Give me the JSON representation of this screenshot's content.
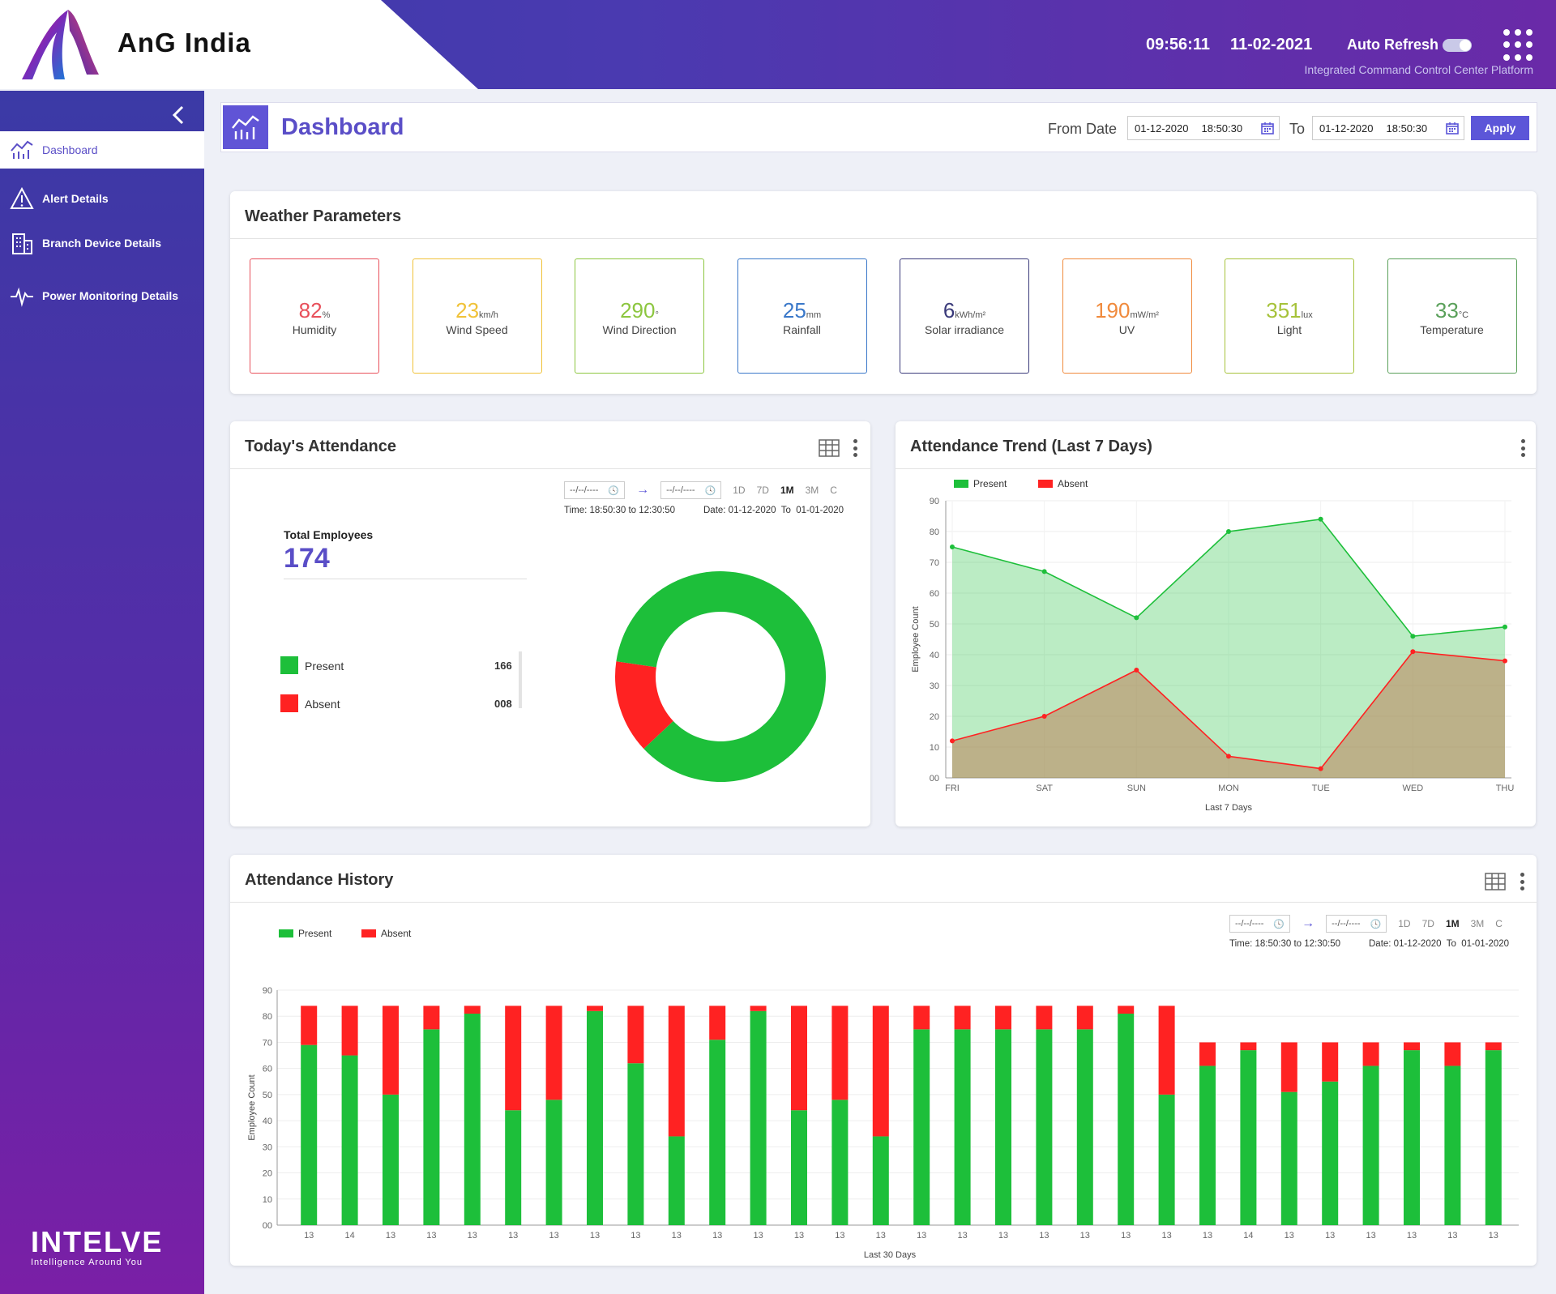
{
  "header": {
    "brand": "AnG India",
    "time": "09:56:11",
    "date": "11-02-2021",
    "auto_refresh_label": "Auto Refresh",
    "auto_refresh_on": true,
    "subtitle": "Integrated Command Control Center Platform"
  },
  "sidebar": {
    "items": [
      {
        "label": "Dashboard",
        "icon": "chart-icon",
        "active": true
      },
      {
        "label": "Alert Details",
        "icon": "warning-icon"
      },
      {
        "label": "Branch Device Details",
        "icon": "building-icon"
      },
      {
        "label": "Power Monitoring Details",
        "icon": "pulse-icon"
      }
    ],
    "footer_brand": "INTELVE",
    "footer_tagline": "Intelligence Around You"
  },
  "page": {
    "title": "Dashboard",
    "from_label": "From Date",
    "from_date": "01-12-2020",
    "from_time": "18:50:30",
    "to_label": "To",
    "to_date": "01-12-2020",
    "to_time": "18:50:30",
    "apply_label": "Apply"
  },
  "weather": {
    "title": "Weather Parameters",
    "tiles": [
      {
        "value": "82",
        "unit": "%",
        "name": "Humidity",
        "color": "#e8505b"
      },
      {
        "value": "23",
        "unit": "km/h",
        "name": "Wind Speed",
        "color": "#f0c239"
      },
      {
        "value": "290",
        "unit": "°",
        "name": "Wind Direction",
        "color": "#8cc63f"
      },
      {
        "value": "25",
        "unit": "mm",
        "name": "Rainfall",
        "color": "#3a78c9"
      },
      {
        "value": "6",
        "unit": "kWh/m²",
        "name": "Solar irradiance",
        "color": "#3a3a7a"
      },
      {
        "value": "190",
        "unit": "mW/m²",
        "name": "UV",
        "color": "#f08a3c"
      },
      {
        "value": "351",
        "unit": "lux",
        "name": "Light",
        "color": "#a6c23a"
      },
      {
        "value": "33",
        "unit": "°C",
        "name": "Temperature",
        "color": "#5aa05a"
      }
    ]
  },
  "range": {
    "from_placeholder": "--/--/----",
    "to_placeholder": "--/--/----",
    "buttons": [
      "1D",
      "7D",
      "1M",
      "3M",
      "C"
    ],
    "selected": "1M",
    "time_info": "Time: 18:50:30 to 12:30:50",
    "date_info": "Date: 01-12-2020  To  01-01-2020"
  },
  "today_attendance": {
    "title": "Today's Attendance",
    "total_label": "Total Employees",
    "total_value": "174",
    "items": [
      {
        "label": "Present",
        "value": "166",
        "color": "#1dbf3a"
      },
      {
        "label": "Absent",
        "value": "008",
        "color": "#ff2222"
      }
    ]
  },
  "chart_data": [
    {
      "type": "pie",
      "title": "Today's Attendance",
      "categories": [
        "Present",
        "Absent"
      ],
      "values": [
        166,
        8
      ],
      "colors": [
        "#1dbf3a",
        "#ff2222"
      ]
    },
    {
      "type": "area",
      "title": "Attendance Trend (Last 7 Days)",
      "categories": [
        "FRI",
        "SAT",
        "SUN",
        "MON",
        "TUE",
        "WED",
        "THU"
      ],
      "series": [
        {
          "name": "Present",
          "values": [
            75,
            67,
            52,
            80,
            84,
            46,
            49
          ],
          "color": "#1dbf3a"
        },
        {
          "name": "Absent",
          "values": [
            12,
            20,
            35,
            7,
            3,
            41,
            38
          ],
          "color": "#ff2222"
        }
      ],
      "xlabel": "Last 7 Days",
      "ylabel": "Employee Count",
      "ylim": [
        0,
        90
      ],
      "yticks": [
        "00",
        "10",
        "20",
        "30",
        "40",
        "50",
        "60",
        "70",
        "80",
        "90"
      ],
      "legend": "top-left"
    },
    {
      "type": "bar",
      "stacked": true,
      "title": "Attendance History",
      "categories": [
        "13",
        "14",
        "13",
        "13",
        "13",
        "13",
        "13",
        "13",
        "13",
        "13",
        "13",
        "13",
        "13",
        "13",
        "13",
        "13",
        "13",
        "13",
        "13",
        "13",
        "13",
        "13",
        "13",
        "14",
        "13",
        "13",
        "13",
        "13",
        "13",
        "13"
      ],
      "series": [
        {
          "name": "Present",
          "values": [
            69,
            65,
            50,
            75,
            81,
            44,
            48,
            82,
            62,
            34,
            71,
            82,
            44,
            48,
            34,
            75,
            75,
            75,
            75,
            75,
            81,
            50,
            61,
            67,
            51,
            55,
            61,
            67,
            61,
            67
          ],
          "color": "#1dbf3a"
        },
        {
          "name": "Absent",
          "values": [
            15,
            19,
            34,
            9,
            3,
            40,
            36,
            2,
            22,
            50,
            13,
            2,
            40,
            36,
            50,
            9,
            9,
            9,
            9,
            9,
            3,
            34,
            9,
            3,
            19,
            15,
            9,
            3,
            9,
            3
          ],
          "color": "#ff2222"
        }
      ],
      "xlabel": "Last 30 Days",
      "ylabel": "Employee Count",
      "ylim": [
        0,
        90
      ],
      "yticks": [
        "00",
        "10",
        "20",
        "30",
        "40",
        "50",
        "60",
        "70",
        "80",
        "90"
      ],
      "legend": "top-left"
    }
  ],
  "trend": {
    "title": "Attendance Trend (Last 7 Days)"
  },
  "history": {
    "title": "Attendance History"
  }
}
